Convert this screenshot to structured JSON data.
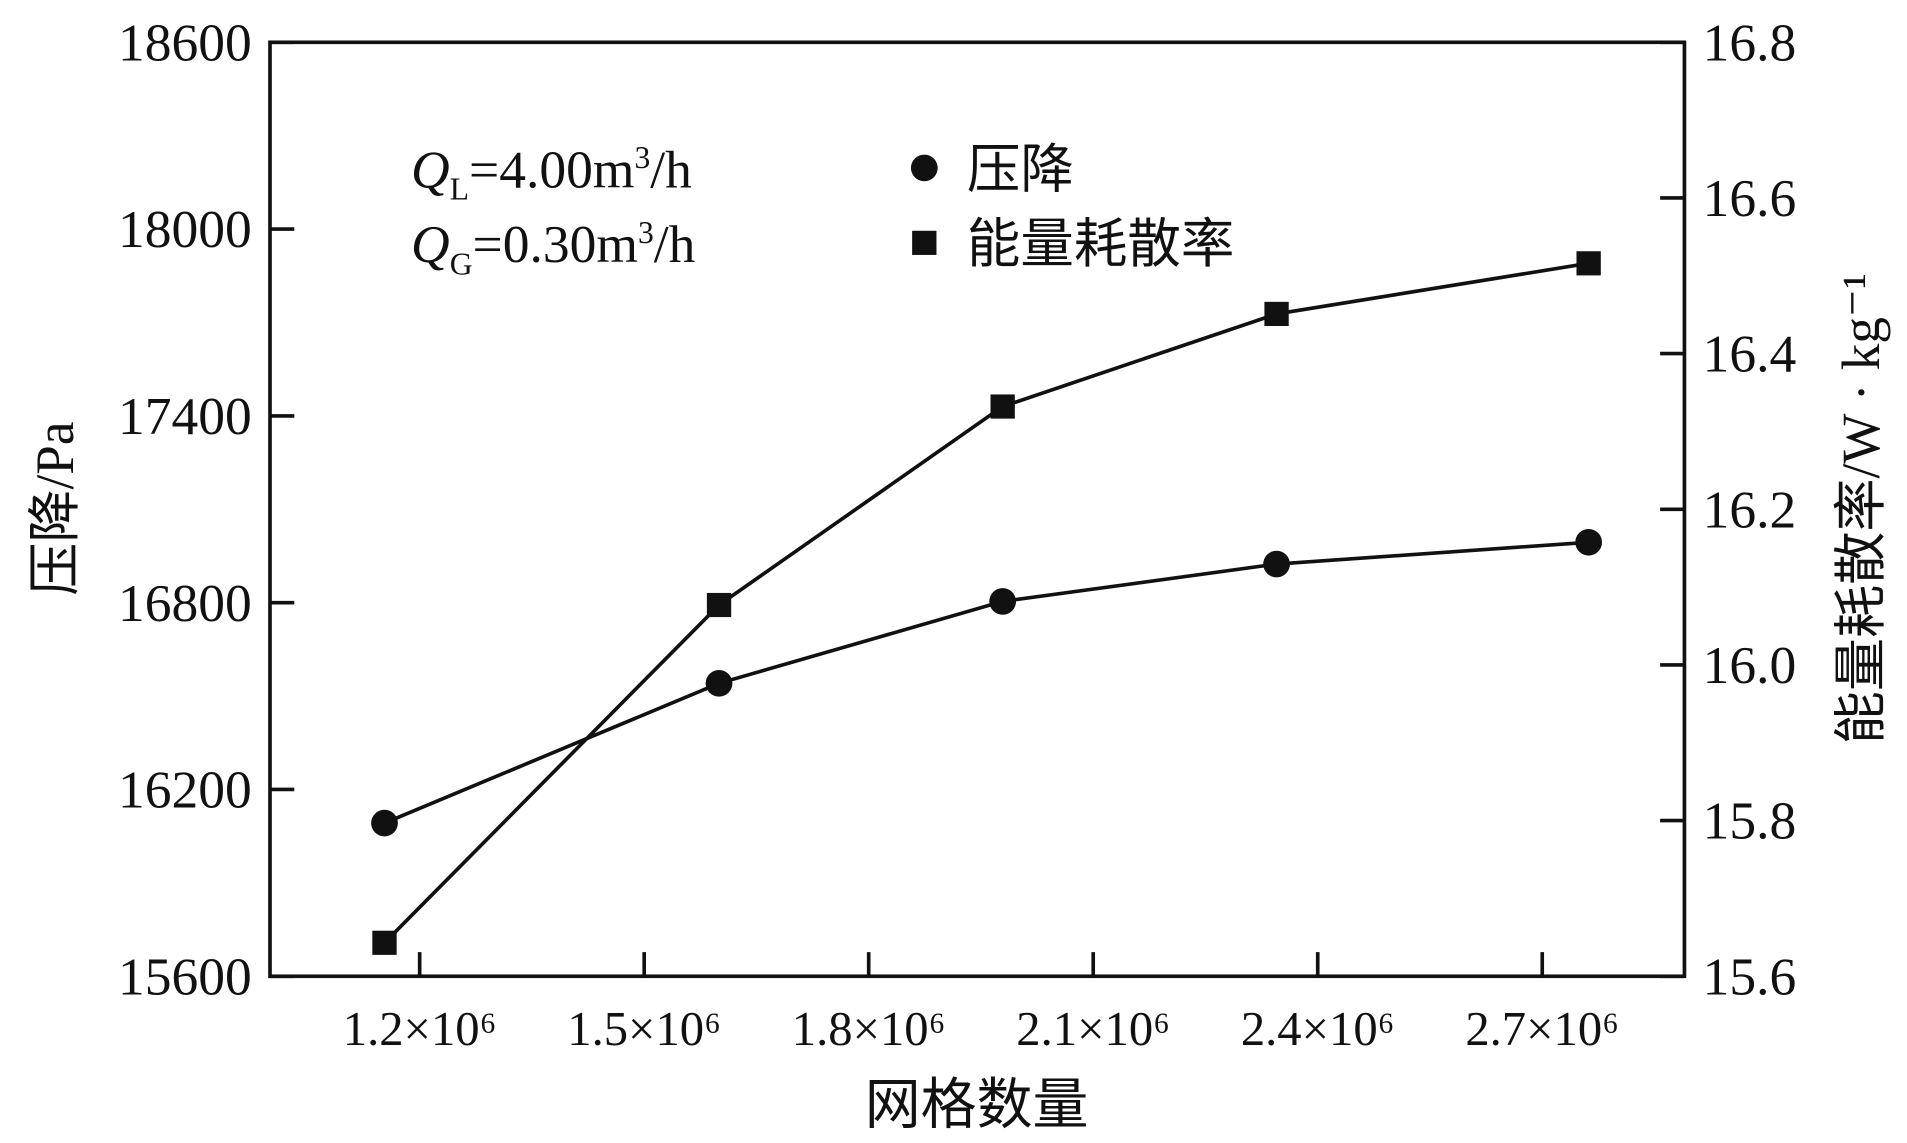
{
  "chart_data": {
    "type": "line",
    "title": "",
    "xlabel": "网格数量",
    "ylabel_left": "压降/Pa",
    "ylabel_right": "能量耗散率/W · kg⁻¹",
    "xlim": [
      1000000.0,
      2890000.0
    ],
    "ylim_left": [
      15600,
      18600
    ],
    "ylim_right": [
      15.6,
      16.8
    ],
    "x_ticks": [
      1200000.0,
      1500000.0,
      1800000.0,
      2100000.0,
      2400000.0,
      2700000.0
    ],
    "x_tick_labels": [
      "1.2×10⁶",
      "1.5×10⁶",
      "1.8×10⁶",
      "2.1×10⁶",
      "2.4×10⁶",
      "2.7×10⁶"
    ],
    "y_left_ticks": [
      15600,
      16200,
      16800,
      17400,
      18000,
      18600
    ],
    "y_left_tick_labels": [
      "15600",
      "16200",
      "16800",
      "17400",
      "18000",
      "18600"
    ],
    "y_right_ticks": [
      15.6,
      15.8,
      16.0,
      16.2,
      16.4,
      16.6,
      16.8
    ],
    "y_right_tick_labels": [
      "15.6",
      "15.8",
      "16.0",
      "16.2",
      "16.4",
      "16.6",
      "16.8"
    ],
    "x": [
      1153000.0,
      1600000.0,
      1979000.0,
      2345000.0,
      2762000.0
    ],
    "series": [
      {
        "name": "压降",
        "axis": "left",
        "marker": "circle",
        "values": [
          16092,
          16541,
          16804,
          16924,
          16994
        ]
      },
      {
        "name": "能量耗散率",
        "axis": "right",
        "marker": "square",
        "values": [
          15.643,
          16.077,
          16.332,
          16.451,
          16.516
        ]
      }
    ],
    "annotations": [
      "QL=4.00m³/h",
      "QG=0.30m³/h"
    ],
    "legend_position": "top-center",
    "grid": false
  }
}
